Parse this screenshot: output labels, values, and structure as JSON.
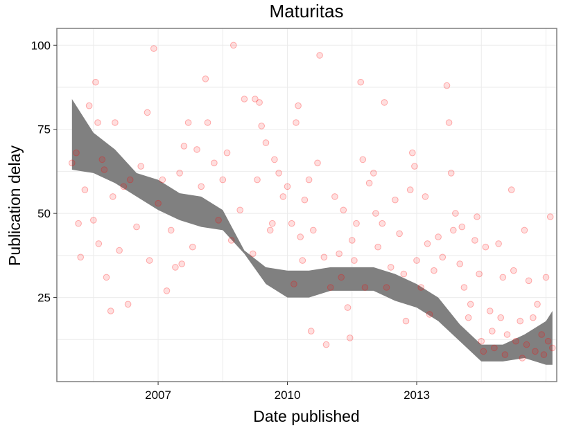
{
  "chart_data": {
    "type": "scatter",
    "title": "Maturitas",
    "xlabel": "Date published",
    "ylabel": "Publication delay",
    "xlim": [
      2004.65,
      2016.25
    ],
    "ylim": [
      0,
      105
    ],
    "x_ticks": [
      2007,
      2010,
      2013
    ],
    "x_tick_labels": [
      "2007",
      "2010",
      "2013"
    ],
    "y_ticks": [
      25,
      50,
      75,
      100
    ],
    "y_tick_labels": [
      "25",
      "50",
      "75",
      "100"
    ],
    "grid": true,
    "legend": "none",
    "colors": {
      "points": "#ff0000",
      "smooth_band": "#808080",
      "grid": "#ebebeb",
      "panel_border": "#7f7f7f"
    },
    "points": [
      [
        2005.0,
        65
      ],
      [
        2005.1,
        68
      ],
      [
        2005.15,
        47
      ],
      [
        2005.2,
        37
      ],
      [
        2005.3,
        57
      ],
      [
        2005.4,
        82
      ],
      [
        2005.5,
        48
      ],
      [
        2005.55,
        89
      ],
      [
        2005.6,
        77
      ],
      [
        2005.62,
        41
      ],
      [
        2005.7,
        66
      ],
      [
        2005.75,
        63
      ],
      [
        2005.8,
        31
      ],
      [
        2005.9,
        21
      ],
      [
        2005.95,
        55
      ],
      [
        2006.0,
        77
      ],
      [
        2006.1,
        39
      ],
      [
        2006.2,
        58
      ],
      [
        2006.3,
        23
      ],
      [
        2006.35,
        60
      ],
      [
        2006.5,
        46
      ],
      [
        2006.6,
        64
      ],
      [
        2006.75,
        80
      ],
      [
        2006.8,
        36
      ],
      [
        2006.9,
        99
      ],
      [
        2007.0,
        53
      ],
      [
        2007.1,
        60
      ],
      [
        2007.2,
        27
      ],
      [
        2007.3,
        45
      ],
      [
        2007.4,
        34
      ],
      [
        2007.5,
        62
      ],
      [
        2007.55,
        35
      ],
      [
        2007.6,
        70
      ],
      [
        2007.7,
        77
      ],
      [
        2007.8,
        40
      ],
      [
        2007.9,
        69
      ],
      [
        2008.0,
        58
      ],
      [
        2008.1,
        90
      ],
      [
        2008.15,
        77
      ],
      [
        2008.3,
        65
      ],
      [
        2008.4,
        48
      ],
      [
        2008.5,
        60
      ],
      [
        2008.6,
        68
      ],
      [
        2008.7,
        42
      ],
      [
        2008.75,
        100
      ],
      [
        2008.9,
        51
      ],
      [
        2009.0,
        84
      ],
      [
        2009.2,
        38
      ],
      [
        2009.25,
        84
      ],
      [
        2009.3,
        60
      ],
      [
        2009.35,
        83
      ],
      [
        2009.4,
        76
      ],
      [
        2009.5,
        71
      ],
      [
        2009.6,
        45
      ],
      [
        2009.65,
        47
      ],
      [
        2009.7,
        66
      ],
      [
        2009.8,
        62
      ],
      [
        2009.9,
        55
      ],
      [
        2010.0,
        58
      ],
      [
        2010.1,
        47
      ],
      [
        2010.15,
        29
      ],
      [
        2010.2,
        77
      ],
      [
        2010.25,
        82
      ],
      [
        2010.3,
        43
      ],
      [
        2010.35,
        36
      ],
      [
        2010.4,
        54
      ],
      [
        2010.5,
        60
      ],
      [
        2010.55,
        15
      ],
      [
        2010.6,
        45
      ],
      [
        2010.7,
        65
      ],
      [
        2010.75,
        97
      ],
      [
        2010.85,
        37
      ],
      [
        2010.9,
        11
      ],
      [
        2011.0,
        28
      ],
      [
        2011.1,
        55
      ],
      [
        2011.2,
        38
      ],
      [
        2011.25,
        31
      ],
      [
        2011.3,
        51
      ],
      [
        2011.4,
        22
      ],
      [
        2011.45,
        13
      ],
      [
        2011.5,
        42
      ],
      [
        2011.55,
        36
      ],
      [
        2011.6,
        47
      ],
      [
        2011.7,
        89
      ],
      [
        2011.75,
        66
      ],
      [
        2011.8,
        28
      ],
      [
        2011.9,
        59
      ],
      [
        2012.0,
        62
      ],
      [
        2012.05,
        50
      ],
      [
        2012.1,
        40
      ],
      [
        2012.2,
        47
      ],
      [
        2012.25,
        83
      ],
      [
        2012.3,
        28
      ],
      [
        2012.4,
        34
      ],
      [
        2012.5,
        54
      ],
      [
        2012.6,
        44
      ],
      [
        2012.7,
        32
      ],
      [
        2012.75,
        18
      ],
      [
        2012.85,
        57
      ],
      [
        2012.9,
        68
      ],
      [
        2012.95,
        64
      ],
      [
        2013.0,
        36
      ],
      [
        2013.1,
        28
      ],
      [
        2013.2,
        55
      ],
      [
        2013.25,
        41
      ],
      [
        2013.3,
        20
      ],
      [
        2013.4,
        33
      ],
      [
        2013.5,
        43
      ],
      [
        2013.6,
        37
      ],
      [
        2013.7,
        88
      ],
      [
        2013.75,
        77
      ],
      [
        2013.8,
        62
      ],
      [
        2013.85,
        45
      ],
      [
        2013.9,
        50
      ],
      [
        2014.0,
        35
      ],
      [
        2014.05,
        46
      ],
      [
        2014.1,
        28
      ],
      [
        2014.2,
        19
      ],
      [
        2014.25,
        23
      ],
      [
        2014.35,
        42
      ],
      [
        2014.4,
        49
      ],
      [
        2014.45,
        32
      ],
      [
        2014.5,
        12
      ],
      [
        2014.55,
        9
      ],
      [
        2014.6,
        40
      ],
      [
        2014.7,
        21
      ],
      [
        2014.75,
        15
      ],
      [
        2014.8,
        10
      ],
      [
        2014.9,
        41
      ],
      [
        2014.95,
        19
      ],
      [
        2015.0,
        31
      ],
      [
        2015.05,
        8
      ],
      [
        2015.1,
        14
      ],
      [
        2015.2,
        57
      ],
      [
        2015.25,
        33
      ],
      [
        2015.3,
        12
      ],
      [
        2015.4,
        18
      ],
      [
        2015.45,
        7
      ],
      [
        2015.5,
        45
      ],
      [
        2015.55,
        11
      ],
      [
        2015.6,
        30
      ],
      [
        2015.7,
        19
      ],
      [
        2015.75,
        9
      ],
      [
        2015.8,
        23
      ],
      [
        2015.9,
        14
      ],
      [
        2015.95,
        8
      ],
      [
        2016.0,
        31
      ],
      [
        2016.05,
        12
      ],
      [
        2016.1,
        49
      ],
      [
        2016.15,
        10
      ]
    ],
    "smooth": {
      "x": [
        2005.0,
        2005.5,
        2006.0,
        2006.5,
        2007.0,
        2007.5,
        2008.0,
        2008.5,
        2009.0,
        2009.5,
        2010.0,
        2010.5,
        2011.0,
        2011.5,
        2012.0,
        2012.5,
        2013.0,
        2013.5,
        2014.0,
        2014.5,
        2015.0,
        2015.5,
        2016.0,
        2016.15
      ],
      "lower": [
        63,
        62,
        59,
        55,
        51,
        48,
        46,
        45,
        38,
        29,
        25,
        25,
        27,
        27,
        27,
        24,
        22,
        18,
        12,
        6,
        6,
        7,
        5,
        5
      ],
      "upper": [
        84,
        74,
        69,
        62,
        60,
        56,
        55,
        51,
        39,
        34,
        33,
        33,
        34,
        34,
        34,
        32,
        29,
        25,
        17,
        11,
        11,
        14,
        18,
        21
      ]
    }
  }
}
